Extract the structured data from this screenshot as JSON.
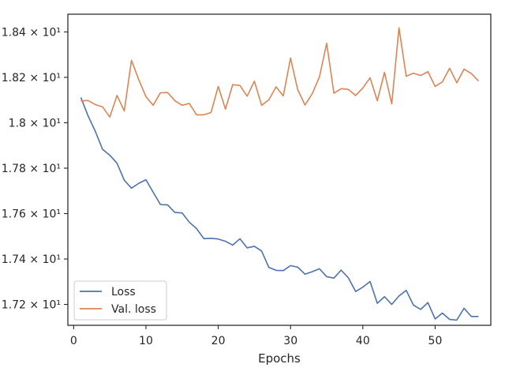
{
  "chart_data": {
    "type": "line",
    "title": "",
    "xlabel": "Epochs",
    "ylabel": "",
    "xlim": [
      -0.8,
      57.7
    ],
    "ylim": [
      17.108,
      18.478
    ],
    "x_ticks": [
      0,
      10,
      20,
      30,
      40,
      50
    ],
    "x_tick_labels": [
      "0",
      "10",
      "20",
      "30",
      "40",
      "50"
    ],
    "y_ticks": [
      17.2,
      17.4,
      17.6,
      17.8,
      18.0,
      18.2,
      18.4
    ],
    "y_tick_labels": [
      "1.72 × 10¹",
      "1.74 × 10¹",
      "1.76 × 10¹",
      "1.78 × 10¹",
      "1.8 × 10¹",
      "1.82 × 10¹",
      "1.84 × 10¹"
    ],
    "grid": false,
    "legend_position": "lower-left",
    "x": [
      1,
      2,
      3,
      4,
      5,
      6,
      7,
      8,
      9,
      10,
      11,
      12,
      13,
      14,
      15,
      16,
      17,
      18,
      19,
      20,
      21,
      22,
      23,
      24,
      25,
      26,
      27,
      28,
      29,
      30,
      31,
      32,
      33,
      34,
      35,
      36,
      37,
      38,
      39,
      40,
      41,
      42,
      43,
      44,
      45,
      46,
      47,
      48,
      49,
      50,
      51,
      52,
      53,
      54,
      55,
      56
    ],
    "series": [
      {
        "name": "Loss",
        "color": "#4c72b0",
        "values": [
          18.111,
          18.03,
          17.962,
          17.883,
          17.857,
          17.822,
          17.747,
          17.712,
          17.733,
          17.749,
          17.694,
          17.64,
          17.638,
          17.605,
          17.603,
          17.562,
          17.534,
          17.49,
          17.491,
          17.488,
          17.478,
          17.461,
          17.489,
          17.449,
          17.456,
          17.435,
          17.363,
          17.35,
          17.349,
          17.371,
          17.364,
          17.333,
          17.344,
          17.357,
          17.322,
          17.316,
          17.351,
          17.317,
          17.257,
          17.276,
          17.301,
          17.205,
          17.234,
          17.2,
          17.237,
          17.262,
          17.197,
          17.178,
          17.208,
          17.136,
          17.162,
          17.134,
          17.131,
          17.183,
          17.147,
          17.147
        ]
      },
      {
        "name": "Val. loss",
        "color": "#dd8452",
        "values": [
          18.096,
          18.098,
          18.08,
          18.07,
          18.025,
          18.12,
          18.052,
          18.275,
          18.19,
          18.115,
          18.077,
          18.132,
          18.133,
          18.097,
          18.077,
          18.085,
          18.035,
          18.035,
          18.045,
          18.16,
          18.06,
          18.168,
          18.164,
          18.117,
          18.183,
          18.077,
          18.101,
          18.158,
          18.118,
          18.285,
          18.145,
          18.078,
          18.128,
          18.202,
          18.35,
          18.13,
          18.15,
          18.147,
          18.12,
          18.153,
          18.198,
          18.097,
          18.222,
          18.083,
          18.418,
          18.205,
          18.218,
          18.208,
          18.225,
          18.16,
          18.18,
          18.24,
          18.176,
          18.236,
          18.217,
          18.184
        ]
      }
    ]
  }
}
